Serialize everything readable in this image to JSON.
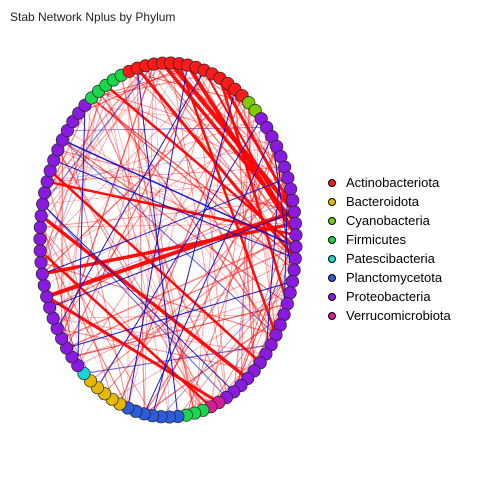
{
  "title": "Stab Network Nplus by Phylum",
  "legend": [
    {
      "label": "Actinobacteriota",
      "color": "#ff1a1a"
    },
    {
      "label": "Bacteroidota",
      "color": "#e6b800"
    },
    {
      "label": "Cyanobacteria",
      "color": "#7acc00"
    },
    {
      "label": "Firmicutes",
      "color": "#1ad64a"
    },
    {
      "label": "Patescibacteria",
      "color": "#1ad6d6"
    },
    {
      "label": "Planctomycetota",
      "color": "#2a5cdc"
    },
    {
      "label": "Proteobacteria",
      "color": "#8a1ae0"
    },
    {
      "label": "Verrucomicrobiota",
      "color": "#d81b9a"
    }
  ],
  "edge_colors": {
    "positive": "#ff0000",
    "negative": "#0000cc"
  },
  "nodes": [
    {
      "phylum": "Proteobacteria"
    },
    {
      "phylum": "Proteobacteria"
    },
    {
      "phylum": "Proteobacteria"
    },
    {
      "phylum": "Proteobacteria"
    },
    {
      "phylum": "Proteobacteria"
    },
    {
      "phylum": "Proteobacteria"
    },
    {
      "phylum": "Proteobacteria"
    },
    {
      "phylum": "Proteobacteria"
    },
    {
      "phylum": "Proteobacteria"
    },
    {
      "phylum": "Proteobacteria"
    },
    {
      "phylum": "Proteobacteria"
    },
    {
      "phylum": "Proteobacteria"
    },
    {
      "phylum": "Proteobacteria"
    },
    {
      "phylum": "Proteobacteria"
    },
    {
      "phylum": "Proteobacteria"
    },
    {
      "phylum": "Proteobacteria"
    },
    {
      "phylum": "Proteobacteria"
    },
    {
      "phylum": "Proteobacteria"
    },
    {
      "phylum": "Proteobacteria"
    },
    {
      "phylum": "Proteobacteria"
    },
    {
      "phylum": "Verrucomicrobiota"
    },
    {
      "phylum": "Verrucomicrobiota"
    },
    {
      "phylum": "Firmicutes"
    },
    {
      "phylum": "Firmicutes"
    },
    {
      "phylum": "Firmicutes"
    },
    {
      "phylum": "Planctomycetota"
    },
    {
      "phylum": "Planctomycetota"
    },
    {
      "phylum": "Planctomycetota"
    },
    {
      "phylum": "Planctomycetota"
    },
    {
      "phylum": "Planctomycetota"
    },
    {
      "phylum": "Planctomycetota"
    },
    {
      "phylum": "Planctomycetota"
    },
    {
      "phylum": "Bacteroidota"
    },
    {
      "phylum": "Bacteroidota"
    },
    {
      "phylum": "Bacteroidota"
    },
    {
      "phylum": "Bacteroidota"
    },
    {
      "phylum": "Bacteroidota"
    },
    {
      "phylum": "Patescibacteria"
    },
    {
      "phylum": "Proteobacteria"
    },
    {
      "phylum": "Proteobacteria"
    },
    {
      "phylum": "Proteobacteria"
    },
    {
      "phylum": "Proteobacteria"
    },
    {
      "phylum": "Proteobacteria"
    },
    {
      "phylum": "Proteobacteria"
    },
    {
      "phylum": "Proteobacteria"
    },
    {
      "phylum": "Proteobacteria"
    },
    {
      "phylum": "Proteobacteria"
    },
    {
      "phylum": "Proteobacteria"
    },
    {
      "phylum": "Proteobacteria"
    },
    {
      "phylum": "Proteobacteria"
    },
    {
      "phylum": "Proteobacteria"
    },
    {
      "phylum": "Proteobacteria"
    },
    {
      "phylum": "Proteobacteria"
    },
    {
      "phylum": "Proteobacteria"
    },
    {
      "phylum": "Proteobacteria"
    },
    {
      "phylum": "Proteobacteria"
    },
    {
      "phylum": "Proteobacteria"
    },
    {
      "phylum": "Proteobacteria"
    },
    {
      "phylum": "Proteobacteria"
    },
    {
      "phylum": "Proteobacteria"
    },
    {
      "phylum": "Proteobacteria"
    },
    {
      "phylum": "Proteobacteria"
    },
    {
      "phylum": "Proteobacteria"
    },
    {
      "phylum": "Proteobacteria"
    },
    {
      "phylum": "Firmicutes"
    },
    {
      "phylum": "Firmicutes"
    },
    {
      "phylum": "Firmicutes"
    },
    {
      "phylum": "Firmicutes"
    },
    {
      "phylum": "Firmicutes"
    },
    {
      "phylum": "Actinobacteriota"
    },
    {
      "phylum": "Actinobacteriota"
    },
    {
      "phylum": "Actinobacteriota"
    },
    {
      "phylum": "Actinobacteriota"
    },
    {
      "phylum": "Actinobacteriota"
    },
    {
      "phylum": "Actinobacteriota"
    },
    {
      "phylum": "Actinobacteriota"
    },
    {
      "phylum": "Actinobacteriota"
    },
    {
      "phylum": "Actinobacteriota"
    },
    {
      "phylum": "Actinobacteriota"
    },
    {
      "phylum": "Actinobacteriota"
    },
    {
      "phylum": "Actinobacteriota"
    },
    {
      "phylum": "Actinobacteriota"
    },
    {
      "phylum": "Actinobacteriota"
    },
    {
      "phylum": "Actinobacteriota"
    },
    {
      "phylum": "Cyanobacteria"
    },
    {
      "phylum": "Cyanobacteria"
    },
    {
      "phylum": "Proteobacteria"
    },
    {
      "phylum": "Proteobacteria"
    },
    {
      "phylum": "Proteobacteria"
    },
    {
      "phylum": "Proteobacteria"
    },
    {
      "phylum": "Proteobacteria"
    },
    {
      "phylum": "Proteobacteria"
    },
    {
      "phylum": "Proteobacteria"
    },
    {
      "phylum": "Proteobacteria"
    },
    {
      "phylum": "Proteobacteria"
    }
  ],
  "edges": [
    {
      "source": 0,
      "target": 74,
      "sign": "positive",
      "weight": 4.5
    },
    {
      "source": 1,
      "target": 73,
      "sign": "positive",
      "weight": 3.5
    },
    {
      "source": 2,
      "target": 76,
      "sign": "positive",
      "weight": 4
    },
    {
      "source": 0,
      "target": 80,
      "sign": "positive",
      "weight": 3
    },
    {
      "source": 4,
      "target": 70,
      "sign": "positive",
      "weight": 3
    },
    {
      "source": 3,
      "target": 66,
      "sign": "positive",
      "weight": 2.5
    },
    {
      "source": 8,
      "target": 80,
      "sign": "positive",
      "weight": 2.5
    },
    {
      "source": 0,
      "target": 45,
      "sign": "positive",
      "weight": 4
    },
    {
      "source": 1,
      "target": 47,
      "sign": "positive",
      "weight": 3.5
    },
    {
      "source": 2,
      "target": 55,
      "sign": "positive",
      "weight": 2.5
    },
    {
      "source": 16,
      "target": 52,
      "sign": "positive",
      "weight": 3.5
    },
    {
      "source": 14,
      "target": 56,
      "sign": "positive",
      "weight": 2.5
    },
    {
      "source": 20,
      "target": 45,
      "sign": "positive",
      "weight": 3
    },
    {
      "source": 21,
      "target": 49,
      "sign": "positive",
      "weight": 2.5
    },
    {
      "source": 11,
      "target": 75,
      "sign": "positive",
      "weight": 2.5
    },
    {
      "source": 78,
      "target": 2,
      "sign": "positive",
      "weight": 2
    },
    {
      "source": 3,
      "target": 59,
      "sign": "negative",
      "weight": 1.5
    },
    {
      "source": 6,
      "target": 88,
      "sign": "negative",
      "weight": 1
    },
    {
      "source": 9,
      "target": 92,
      "sign": "negative",
      "weight": 1
    },
    {
      "source": 29,
      "target": 88,
      "sign": "negative",
      "weight": 1
    },
    {
      "source": 13,
      "target": 90,
      "sign": "negative",
      "weight": 1
    },
    {
      "source": 25,
      "target": 70,
      "sign": "negative",
      "weight": 1
    },
    {
      "source": 28,
      "target": 82,
      "sign": "negative",
      "weight": 1
    },
    {
      "source": 31,
      "target": 76,
      "sign": "negative",
      "weight": 1
    },
    {
      "source": 53,
      "target": 18,
      "sign": "negative",
      "weight": 1
    },
    {
      "source": 57,
      "target": 4,
      "sign": "negative",
      "weight": 1
    },
    {
      "source": 40,
      "target": 6,
      "sign": "negative",
      "weight": 1
    },
    {
      "source": 86,
      "target": 35,
      "sign": "negative",
      "weight": 1
    },
    {
      "source": 44,
      "target": 0,
      "sign": "negative",
      "weight": 1
    },
    {
      "source": 47,
      "target": 92,
      "sign": "negative",
      "weight": 1
    },
    {
      "source": 42,
      "target": 78,
      "sign": "negative",
      "weight": 1
    },
    {
      "source": 38,
      "target": 63,
      "sign": "negative",
      "weight": 1
    }
  ]
}
